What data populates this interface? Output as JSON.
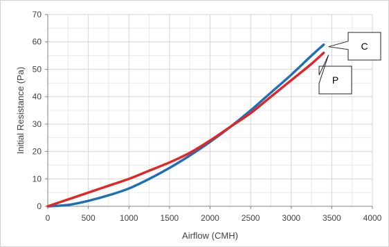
{
  "chart_data": {
    "type": "line",
    "xlabel": "Airflow (CMH)",
    "ylabel": "Initial Resistance (Pa)",
    "xlim": [
      0,
      4000
    ],
    "ylim": [
      0,
      70
    ],
    "x_ticks": [
      "0",
      "500",
      "1000",
      "1500",
      "2000",
      "2500",
      "3000",
      "3500",
      "4000"
    ],
    "y_ticks": [
      "0",
      "10",
      "20",
      "30",
      "40",
      "50",
      "60",
      "70"
    ],
    "grid": true,
    "series": [
      {
        "name": "C",
        "color": "#1f6fb7",
        "x": [
          0,
          250,
          500,
          750,
          1000,
          1250,
          1500,
          1750,
          2000,
          2250,
          2500,
          2750,
          3000,
          3250,
          3400
        ],
        "y": [
          0,
          0.5,
          2,
          4,
          6.5,
          10,
          14,
          18.5,
          23.5,
          29,
          35,
          41.5,
          48,
          55,
          59
        ]
      },
      {
        "name": "P",
        "color": "#e22626",
        "x": [
          0,
          250,
          500,
          750,
          1000,
          1250,
          1500,
          1750,
          2000,
          2250,
          2500,
          2750,
          3000,
          3250,
          3400
        ],
        "y": [
          0,
          2.5,
          5,
          7.5,
          10,
          13,
          16,
          19.5,
          24,
          29,
          34,
          40,
          46,
          52,
          56
        ]
      }
    ],
    "annotations": [
      {
        "label": "C",
        "series": "C"
      },
      {
        "label": "P",
        "series": "P"
      }
    ]
  }
}
